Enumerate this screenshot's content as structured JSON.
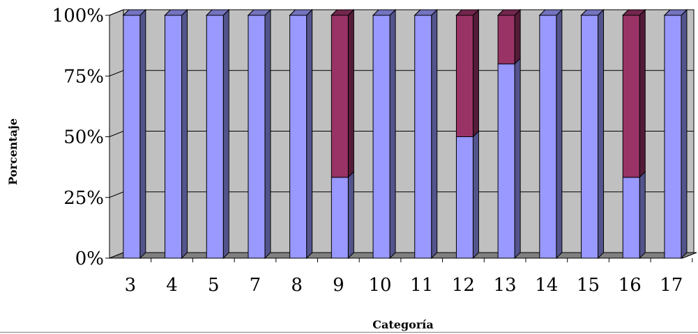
{
  "chart_data": {
    "type": "bar",
    "stacked": true,
    "percent_stacked": true,
    "three_d": true,
    "categories": [
      "3",
      "4",
      "5",
      "7",
      "8",
      "9",
      "10",
      "11",
      "12",
      "13",
      "14",
      "15",
      "16",
      "17"
    ],
    "series": [
      {
        "values": [
          100,
          100,
          100,
          100,
          100,
          33.3,
          100,
          100,
          50,
          80,
          100,
          100,
          33.3,
          100
        ]
      },
      {
        "values": [
          0,
          0,
          0,
          0,
          0,
          66.7,
          0,
          0,
          50,
          20,
          0,
          0,
          66.7,
          0
        ]
      }
    ],
    "xlabel": "Categoría",
    "ylabel": "Porcentaje",
    "ylim": [
      0,
      100
    ],
    "yticks": [
      "0%",
      "25%",
      "50%",
      "75%",
      "100%"
    ],
    "grid": true,
    "legend": "none"
  },
  "colors": {
    "series": [
      "#9999FF",
      "#993366"
    ],
    "plot_back": "#C0C0C0",
    "plot_floor": "#808080"
  }
}
